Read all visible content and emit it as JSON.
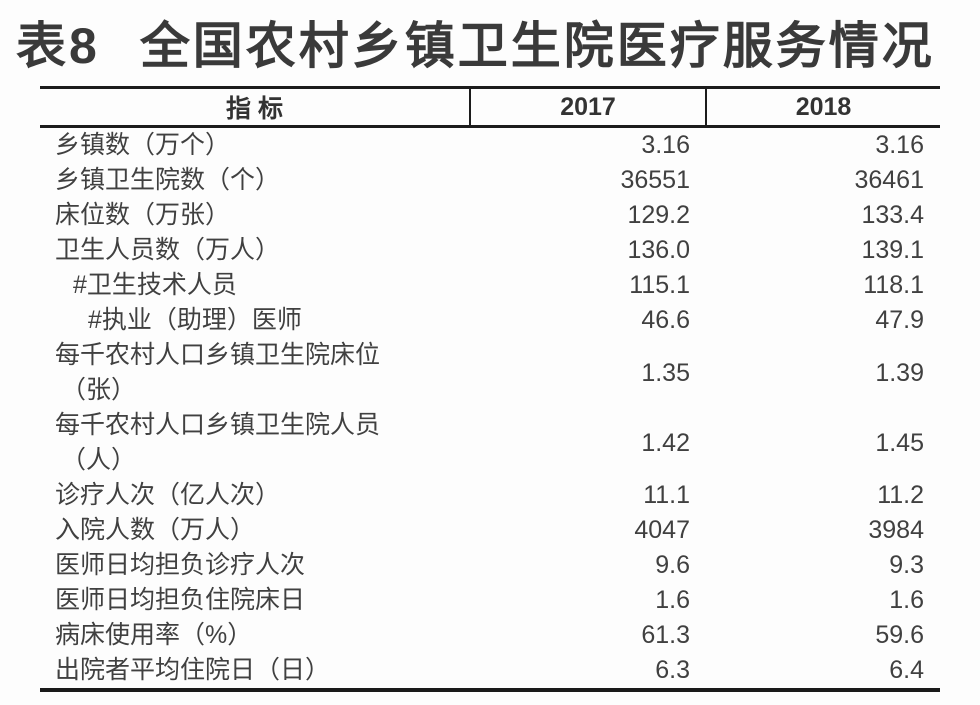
{
  "title": {
    "prefix": "表8",
    "text": "全国农村乡镇卫生院医疗服务情况"
  },
  "table": {
    "columns": [
      "指 标",
      "2017",
      "2018"
    ],
    "rows": [
      {
        "indicator": "乡镇数（万个）",
        "indent": 0,
        "v2017": "3.16",
        "v2018": "3.16"
      },
      {
        "indicator": "乡镇卫生院数（个）",
        "indent": 0,
        "v2017": "36551",
        "v2018": "36461"
      },
      {
        "indicator": "床位数（万张）",
        "indent": 0,
        "v2017": "129.2",
        "v2018": "133.4"
      },
      {
        "indicator": "卫生人员数（万人）",
        "indent": 0,
        "v2017": "136.0",
        "v2018": "139.1"
      },
      {
        "indicator": "#卫生技术人员",
        "indent": 1,
        "v2017": "115.1",
        "v2018": "118.1"
      },
      {
        "indicator": "#执业（助理）医师",
        "indent": 2,
        "v2017": "46.6",
        "v2018": "47.9"
      },
      {
        "indicator": "每千农村人口乡镇卫生院床位",
        "line2": "（张）",
        "indent": 0,
        "v2017": "1.35",
        "v2018": "1.39"
      },
      {
        "indicator": "每千农村人口乡镇卫生院人员",
        "line2": "（人）",
        "indent": 0,
        "v2017": "1.42",
        "v2018": "1.45"
      },
      {
        "indicator": "诊疗人次（亿人次）",
        "indent": 0,
        "v2017": "11.1",
        "v2018": "11.2"
      },
      {
        "indicator": "入院人数（万人）",
        "indent": 0,
        "v2017": "4047",
        "v2018": "3984"
      },
      {
        "indicator": "医师日均担负诊疗人次",
        "indent": 0,
        "v2017": "9.6",
        "v2018": "9.3"
      },
      {
        "indicator": "医师日均担负住院床日",
        "indent": 0,
        "v2017": "1.6",
        "v2018": "1.6"
      },
      {
        "indicator": "病床使用率（%）",
        "indent": 0,
        "v2017": "61.3",
        "v2018": "59.6"
      },
      {
        "indicator": "出院者平均住院日（日）",
        "indent": 0,
        "v2017": "6.3",
        "v2018": "6.4"
      }
    ]
  },
  "chart_data": {
    "type": "table",
    "title": "表8 全国农村乡镇卫生院医疗服务情况",
    "columns": [
      "指 标",
      "2017",
      "2018"
    ],
    "rows": [
      [
        "乡镇数（万个）",
        3.16,
        3.16
      ],
      [
        "乡镇卫生院数（个）",
        36551,
        36461
      ],
      [
        "床位数（万张）",
        129.2,
        133.4
      ],
      [
        "卫生人员数（万人）",
        136.0,
        139.1
      ],
      [
        "#卫生技术人员",
        115.1,
        118.1
      ],
      [
        "#执业（助理）医师",
        46.6,
        47.9
      ],
      [
        "每千农村人口乡镇卫生院床位（张）",
        1.35,
        1.39
      ],
      [
        "每千农村人口乡镇卫生院人员（人）",
        1.42,
        1.45
      ],
      [
        "诊疗人次（亿人次）",
        11.1,
        11.2
      ],
      [
        "入院人数（万人）",
        4047,
        3984
      ],
      [
        "医师日均担负诊疗人次",
        9.6,
        9.3
      ],
      [
        "医师日均担负住院床日",
        1.6,
        1.6
      ],
      [
        "病床使用率（%）",
        61.3,
        59.6
      ],
      [
        "出院者平均住院日（日）",
        6.3,
        6.4
      ]
    ]
  },
  "colors": {
    "background": "#fdfdfd",
    "title_text": "#3a3a3a",
    "body_text": "#404040",
    "header_text": "#333333",
    "rule": "#1c1c1c"
  }
}
